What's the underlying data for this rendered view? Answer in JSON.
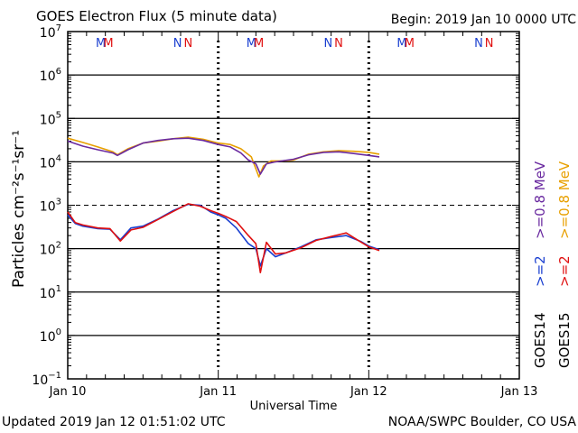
{
  "header": {
    "title": "GOES Electron Flux (5 minute data)",
    "begin": "Begin: 2019 Jan 10 0000 UTC"
  },
  "footer": {
    "updated": "Updated 2019 Jan 12 01:51:02 UTC",
    "credit": "NOAA/SWPC Boulder, CO USA"
  },
  "colors": {
    "goes14_e2": "#1a3fd0",
    "goes15_e2": "#e01010",
    "goes14_e08": "#6a2aa0",
    "goes15_e08": "#e8a000"
  },
  "chart_data": {
    "type": "line",
    "title": "GOES Electron Flux (5 minute data)",
    "xlabel": "Universal Time",
    "ylabel": "Particles cm⁻²s⁻¹sr⁻¹",
    "yscale": "log",
    "ylim_exp": [
      -1,
      7
    ],
    "xlim_days": [
      0,
      3
    ],
    "x_ticks": [
      {
        "day": 0,
        "label": "Jan 10"
      },
      {
        "day": 1,
        "label": "Jan 11"
      },
      {
        "day": 2,
        "label": "Jan 12"
      },
      {
        "day": 3,
        "label": "Jan 13"
      }
    ],
    "y_ticks": [
      {
        "exp": -1,
        "base": "10",
        "sup": "−1"
      },
      {
        "exp": 0,
        "base": "10",
        "sup": "0"
      },
      {
        "exp": 1,
        "base": "10",
        "sup": "1"
      },
      {
        "exp": 2,
        "base": "10",
        "sup": "2"
      },
      {
        "exp": 3,
        "base": "10",
        "sup": "3"
      },
      {
        "exp": 4,
        "base": "10",
        "sup": "4"
      },
      {
        "exp": 5,
        "base": "10",
        "sup": "5"
      },
      {
        "exp": 6,
        "base": "10",
        "sup": "6"
      },
      {
        "exp": 7,
        "base": "10",
        "sup": "7"
      }
    ],
    "threshold_exp": 3,
    "midnight_markers": [
      1,
      2
    ],
    "mn_markers": [
      {
        "day": 0.22,
        "label": "M",
        "sat": "goes14"
      },
      {
        "day": 0.27,
        "label": "M",
        "sat": "goes15"
      },
      {
        "day": 0.73,
        "label": "N",
        "sat": "goes14"
      },
      {
        "day": 0.8,
        "label": "N",
        "sat": "goes15"
      },
      {
        "day": 1.22,
        "label": "M",
        "sat": "goes14"
      },
      {
        "day": 1.27,
        "label": "M",
        "sat": "goes15"
      },
      {
        "day": 1.73,
        "label": "N",
        "sat": "goes14"
      },
      {
        "day": 1.8,
        "label": "N",
        "sat": "goes15"
      },
      {
        "day": 2.22,
        "label": "M",
        "sat": "goes14"
      },
      {
        "day": 2.27,
        "label": "M",
        "sat": "goes15"
      },
      {
        "day": 2.73,
        "label": "N",
        "sat": "goes14"
      },
      {
        "day": 2.8,
        "label": "N",
        "sat": "goes15"
      }
    ],
    "legend": {
      "goes14_e08": ">=0.8 MeV",
      "goes15_e08": ">=0.8 MeV",
      "goes14_e2": ">=2",
      "goes15_e2": ">=2",
      "goes14_label": "GOES14",
      "goes15_label": "GOES15"
    },
    "series": [
      {
        "name": "GOES15 >=0.8 MeV",
        "color_key": "goes15_e08",
        "x": [
          0,
          0.1,
          0.2,
          0.3,
          0.33,
          0.4,
          0.5,
          0.6,
          0.7,
          0.8,
          0.9,
          1.0,
          1.08,
          1.15,
          1.22,
          1.27,
          1.3,
          1.35,
          1.42,
          1.5,
          1.6,
          1.7,
          1.8,
          1.9,
          2.0,
          2.07
        ],
        "y": [
          35000,
          28000,
          22000,
          17000,
          14500,
          20000,
          27000,
          30000,
          34000,
          37000,
          33000,
          27000,
          25000,
          20000,
          13000,
          4500,
          8000,
          10500,
          10500,
          11000,
          15000,
          17000,
          18000,
          17500,
          16500,
          15000
        ]
      },
      {
        "name": "GOES14 >=0.8 MeV",
        "color_key": "goes14_e08",
        "x": [
          0,
          0.1,
          0.2,
          0.3,
          0.33,
          0.4,
          0.5,
          0.6,
          0.7,
          0.8,
          0.9,
          1.0,
          1.08,
          1.15,
          1.2,
          1.25,
          1.28,
          1.32,
          1.38,
          1.5,
          1.6,
          1.7,
          1.8,
          1.9,
          2.0,
          2.07
        ],
        "y": [
          30000,
          23000,
          19000,
          16000,
          14000,
          19000,
          27000,
          31000,
          34000,
          35000,
          31000,
          25000,
          22000,
          16000,
          11000,
          9000,
          5200,
          9000,
          10000,
          11500,
          14500,
          16500,
          17000,
          15500,
          14000,
          13000
        ]
      },
      {
        "name": "GOES14 >=2 MeV",
        "color_key": "goes14_e2",
        "x": [
          0,
          0.05,
          0.1,
          0.2,
          0.28,
          0.35,
          0.42,
          0.5,
          0.6,
          0.7,
          0.8,
          0.88,
          0.95,
          1.0,
          1.05,
          1.12,
          1.2,
          1.25,
          1.28,
          1.32,
          1.38,
          1.45,
          1.55,
          1.65,
          1.75,
          1.85,
          1.95,
          2.0,
          2.07
        ],
        "y": [
          600,
          380,
          330,
          290,
          280,
          160,
          300,
          330,
          480,
          750,
          1050,
          1000,
          700,
          600,
          500,
          300,
          130,
          100,
          40,
          100,
          65,
          80,
          110,
          160,
          180,
          200,
          145,
          115,
          95
        ]
      },
      {
        "name": "GOES15 >=2 MeV",
        "color_key": "goes15_e2",
        "x": [
          0,
          0.05,
          0.1,
          0.2,
          0.28,
          0.35,
          0.42,
          0.5,
          0.6,
          0.7,
          0.8,
          0.88,
          0.95,
          1.0,
          1.05,
          1.12,
          1.2,
          1.25,
          1.28,
          1.32,
          1.38,
          1.45,
          1.55,
          1.65,
          1.75,
          1.85,
          1.95,
          2.0,
          2.07
        ],
        "y": [
          700,
          400,
          350,
          300,
          290,
          150,
          270,
          310,
          470,
          720,
          1080,
          950,
          750,
          650,
          550,
          420,
          200,
          130,
          28,
          140,
          75,
          80,
          105,
          155,
          190,
          230,
          140,
          110,
          90
        ]
      }
    ]
  }
}
